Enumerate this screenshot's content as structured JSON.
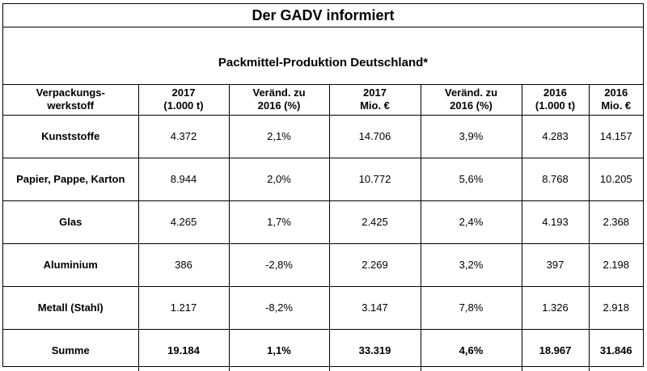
{
  "title": "Der GADV informiert",
  "subtitle": "Packmittel-Produktion Deutschland*",
  "columns": [
    {
      "line1": "Verpackungs-",
      "line2": "werkstoff"
    },
    {
      "line1": "2017",
      "line2": "(1.000 t)"
    },
    {
      "line1": "Veränd. zu",
      "line2": "2016 (%)"
    },
    {
      "line1": "2017",
      "line2": "Mio. €"
    },
    {
      "line1": "Veränd. zu",
      "line2": "2016 (%)"
    },
    {
      "line1": "2016",
      "line2": "(1.000 t)"
    },
    {
      "line1": "2016",
      "line2": "Mio. €"
    }
  ],
  "rows": [
    [
      "Kunststoffe",
      "4.372",
      "2,1%",
      "14.706",
      "3,9%",
      "4.283",
      "14.157"
    ],
    [
      "Papier, Pappe, Karton",
      "8.944",
      "2,0%",
      "10.772",
      "5,6%",
      "8.768",
      "10.205"
    ],
    [
      "Glas",
      "4.265",
      "1,7%",
      "2.425",
      "2,4%",
      "4.193",
      "2.368"
    ],
    [
      "Aluminium",
      "386",
      "-2,8%",
      "2.269",
      "3,2%",
      "397",
      "2.198"
    ],
    [
      "Metall (Stahl)",
      "1.217",
      "-8,2%",
      "3.147",
      "7,8%",
      "1.326",
      "2.918"
    ],
    [
      "Summe",
      "19.184",
      "1,1%",
      "33.319",
      "4,6%",
      "18.967",
      "31.846"
    ]
  ]
}
